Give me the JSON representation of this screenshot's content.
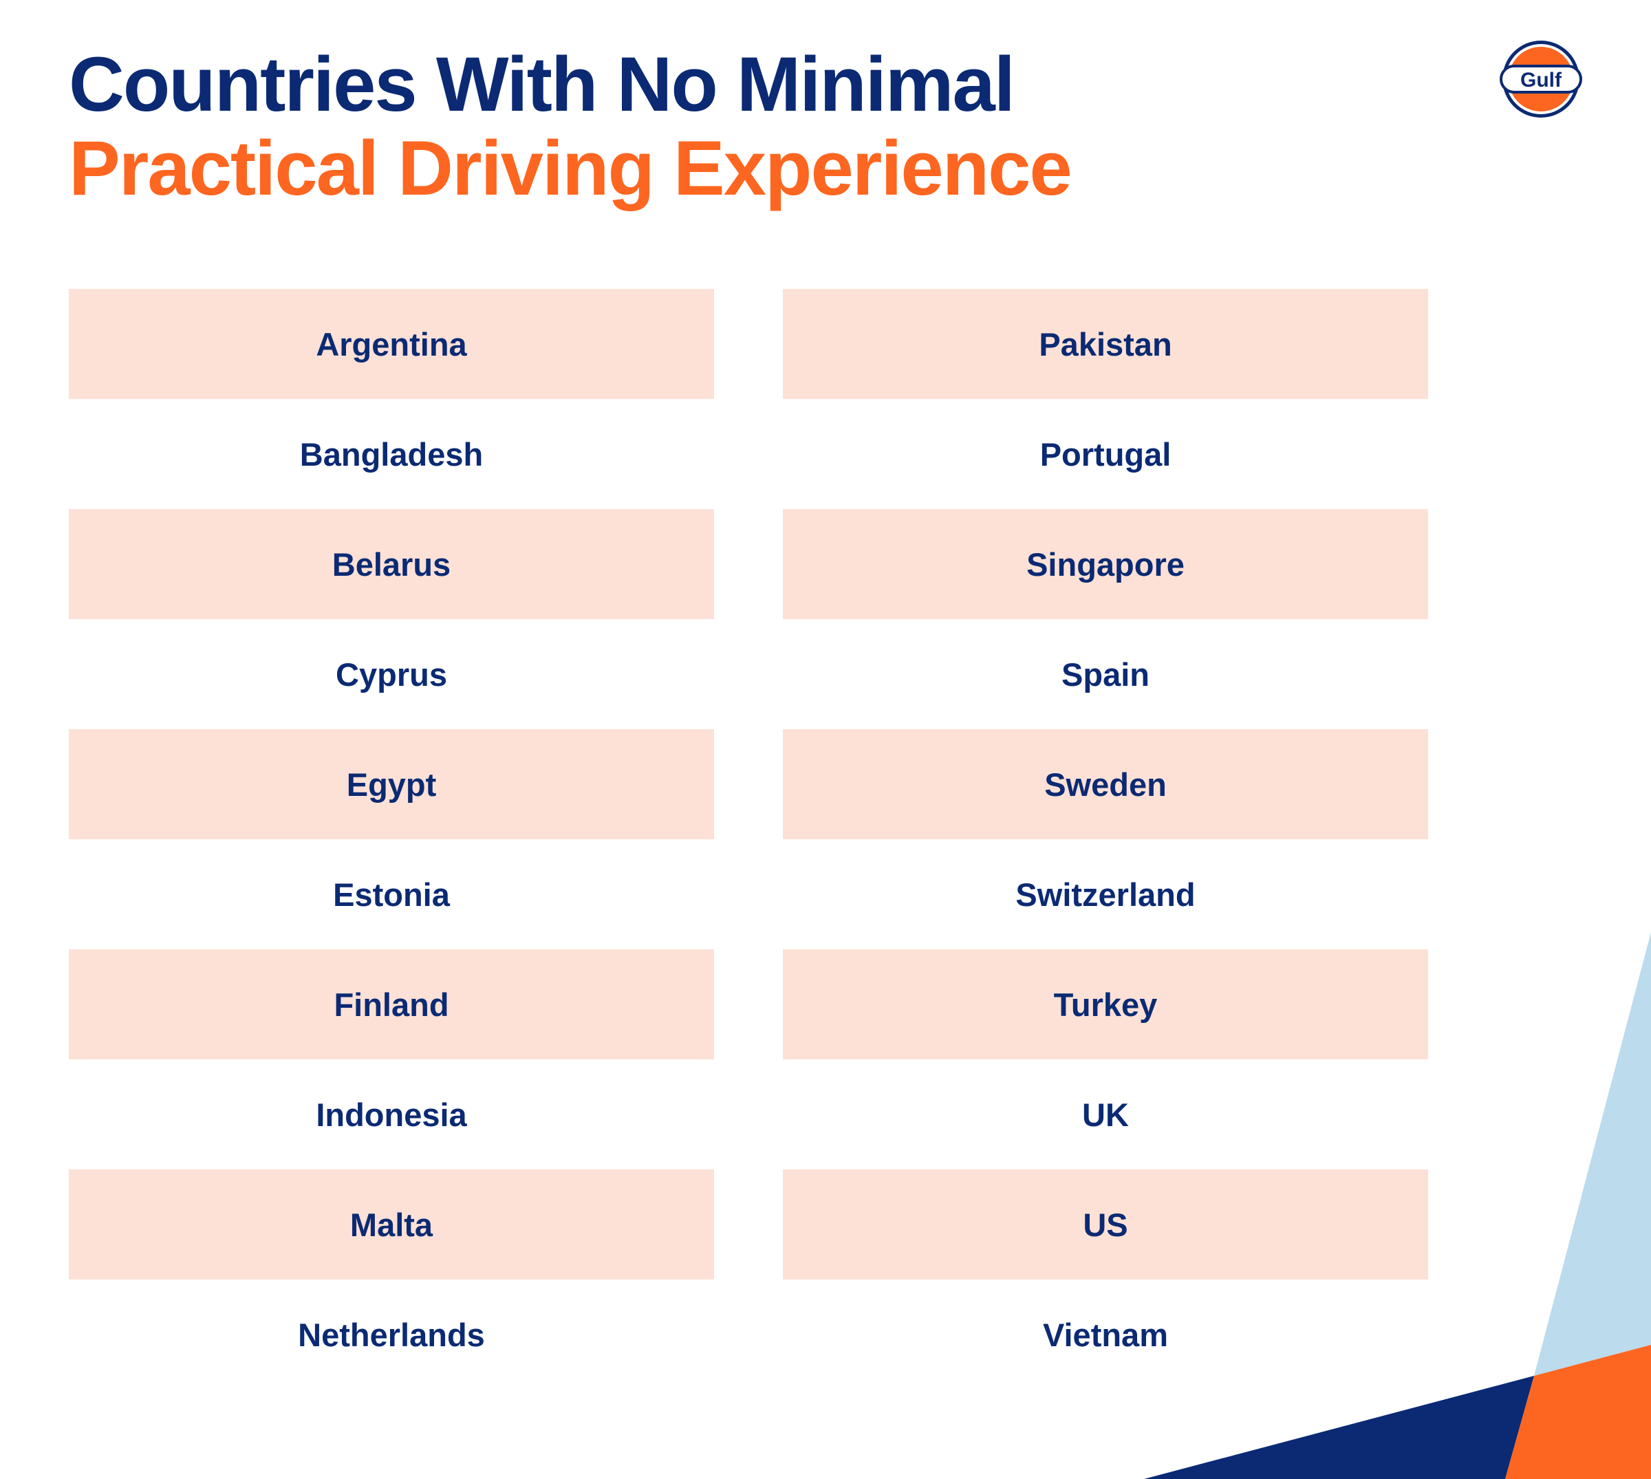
{
  "title": {
    "line1": "Countries With No Minimal",
    "line2": "Practical Driving Experience"
  },
  "logo": {
    "text": "Gulf",
    "icon": "gulf-logo-icon",
    "colors": {
      "navy": "#0b2a73",
      "orange": "#fd6620",
      "white": "#ffffff"
    }
  },
  "countries": {
    "left": [
      "Argentina",
      "Bangladesh",
      "Belarus",
      "Cyprus",
      "Egypt",
      "Estonia",
      "Finland",
      "Indonesia",
      "Malta",
      "Netherlands"
    ],
    "right": [
      "Pakistan",
      "Portugal",
      "Singapore",
      "Spain",
      "Sweden",
      "Switzerland",
      "Turkey",
      "UK",
      "US",
      "Vietnam"
    ]
  },
  "colors": {
    "navy": "#0b2a73",
    "orange": "#fd6620",
    "row_shade": "#fde1d6",
    "light_blue": "#bcdbed"
  }
}
